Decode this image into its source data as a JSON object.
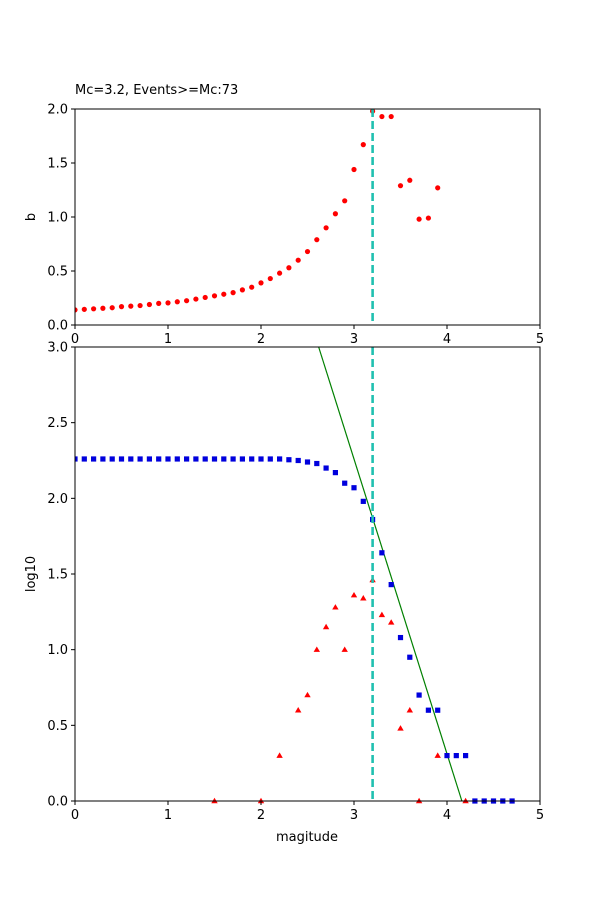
{
  "chart_data": [
    {
      "type": "scatter",
      "title": "Mc=3.2, Events>=Mc:73",
      "xlabel": "",
      "ylabel": "b",
      "xlim": [
        0,
        5
      ],
      "ylim": [
        0,
        2.0
      ],
      "xticks": [
        "0",
        "1",
        "2",
        "3",
        "4",
        "5"
      ],
      "yticks": [
        "0.0",
        "0.5",
        "1.0",
        "1.5",
        "2.0"
      ],
      "grid": false,
      "mc_line": {
        "x": 3.2,
        "color": "#20c0b0",
        "style": "dashed"
      },
      "series": [
        {
          "marker": "circle",
          "color": "#ff0000",
          "x": [
            0.0,
            0.1,
            0.2,
            0.3,
            0.4,
            0.5,
            0.6,
            0.7,
            0.8,
            0.9,
            1.0,
            1.1,
            1.2,
            1.3,
            1.4,
            1.5,
            1.6,
            1.7,
            1.8,
            1.9,
            2.0,
            2.1,
            2.2,
            2.3,
            2.4,
            2.5,
            2.6,
            2.7,
            2.8,
            2.9,
            3.0,
            3.1,
            3.2,
            3.3,
            3.4,
            3.5,
            3.6,
            3.7,
            3.8,
            3.9
          ],
          "y": [
            0.14,
            0.145,
            0.15,
            0.155,
            0.16,
            0.17,
            0.175,
            0.18,
            0.19,
            0.2,
            0.205,
            0.215,
            0.225,
            0.24,
            0.255,
            0.27,
            0.285,
            0.3,
            0.325,
            0.35,
            0.39,
            0.43,
            0.48,
            0.53,
            0.6,
            0.68,
            0.79,
            0.9,
            1.03,
            1.15,
            1.44,
            1.67,
            1.98,
            1.93,
            1.93,
            1.29,
            1.34,
            0.98,
            0.99,
            1.27
          ]
        }
      ]
    },
    {
      "type": "scatter",
      "title": "",
      "xlabel": "magitude",
      "ylabel": "log10",
      "xlim": [
        0,
        5
      ],
      "ylim": [
        0,
        3.0
      ],
      "xticks": [
        "0",
        "1",
        "2",
        "3",
        "4",
        "5"
      ],
      "yticks": [
        "0.0",
        "0.5",
        "1.0",
        "1.5",
        "2.0",
        "2.5",
        "3.0"
      ],
      "grid": false,
      "mc_line": {
        "x": 3.2,
        "color": "#20c0b0",
        "style": "dashed"
      },
      "fit_line": {
        "color": "#008000",
        "x": [
          2.62,
          4.16
        ],
        "y": [
          3.0,
          0.0
        ]
      },
      "series": [
        {
          "marker": "square",
          "color": "#0000dd",
          "x": [
            0.0,
            0.1,
            0.2,
            0.3,
            0.4,
            0.5,
            0.6,
            0.7,
            0.8,
            0.9,
            1.0,
            1.1,
            1.2,
            1.3,
            1.4,
            1.5,
            1.6,
            1.7,
            1.8,
            1.9,
            2.0,
            2.1,
            2.2,
            2.3,
            2.4,
            2.5,
            2.6,
            2.7,
            2.8,
            2.9,
            3.0,
            3.1,
            3.2,
            3.3,
            3.4,
            3.5,
            3.6,
            3.7,
            3.8,
            3.9,
            4.0,
            4.1,
            4.2,
            4.3,
            4.4,
            4.5,
            4.6,
            4.7
          ],
          "y": [
            2.26,
            2.26,
            2.26,
            2.26,
            2.26,
            2.26,
            2.26,
            2.26,
            2.26,
            2.26,
            2.26,
            2.26,
            2.26,
            2.26,
            2.26,
            2.26,
            2.26,
            2.26,
            2.26,
            2.26,
            2.26,
            2.26,
            2.26,
            2.255,
            2.25,
            2.24,
            2.23,
            2.2,
            2.17,
            2.1,
            2.07,
            1.98,
            1.86,
            1.64,
            1.43,
            1.08,
            0.95,
            0.7,
            0.6,
            0.6,
            0.3,
            0.3,
            0.3,
            0.0,
            0.0,
            0.0,
            0.0,
            0.0
          ]
        },
        {
          "marker": "triangle",
          "color": "#ff0000",
          "x": [
            1.5,
            2.0,
            2.2,
            2.4,
            2.5,
            2.6,
            2.7,
            2.8,
            2.9,
            3.0,
            3.1,
            3.2,
            3.3,
            3.4,
            3.5,
            3.6,
            3.7,
            3.9,
            4.2
          ],
          "y": [
            0.0,
            0.0,
            0.3,
            0.6,
            0.7,
            1.0,
            1.15,
            1.28,
            1.0,
            1.36,
            1.34,
            1.46,
            1.23,
            1.18,
            0.48,
            0.6,
            0.0,
            0.3,
            0.0
          ]
        }
      ]
    }
  ]
}
